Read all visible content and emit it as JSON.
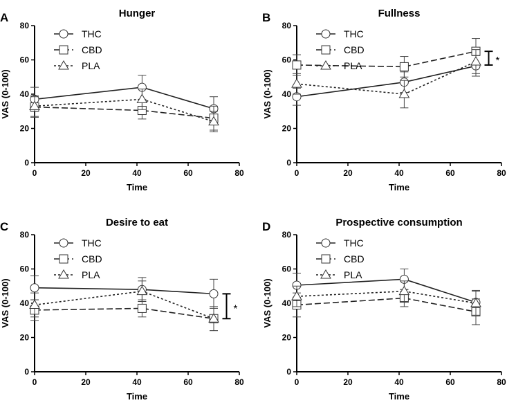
{
  "chart_data": [
    {
      "type": "line",
      "panel_label": "A",
      "title": "Hunger",
      "xlabel": "Time",
      "ylabel": "VAS (0-100)",
      "xlim": [
        0,
        80
      ],
      "ylim": [
        0,
        80
      ],
      "xticks": [
        0,
        20,
        40,
        60,
        80
      ],
      "yticks": [
        0,
        20,
        40,
        60,
        80
      ],
      "x": [
        0,
        42,
        70
      ],
      "legend": "top-left",
      "series": [
        {
          "name": "THC",
          "marker": "circle",
          "dash": "solid",
          "values": [
            37,
            44,
            31.5
          ],
          "error": [
            7,
            7,
            7
          ]
        },
        {
          "name": "CBD",
          "marker": "square",
          "dash": "dashed",
          "values": [
            32.5,
            30.5,
            26
          ],
          "error": [
            6,
            5,
            7
          ]
        },
        {
          "name": "PLA",
          "marker": "triangle",
          "dash": "dotted",
          "values": [
            33,
            37,
            24
          ],
          "error": [
            6,
            6,
            6
          ]
        }
      ],
      "annotations": []
    },
    {
      "type": "line",
      "panel_label": "B",
      "title": "Fullness",
      "xlabel": "Time",
      "ylabel": "VAS (0-100)",
      "xlim": [
        0,
        80
      ],
      "ylim": [
        0,
        80
      ],
      "xticks": [
        0,
        20,
        40,
        60,
        80
      ],
      "yticks": [
        0,
        20,
        40,
        60,
        80
      ],
      "x": [
        0,
        42,
        70
      ],
      "legend": "top-left",
      "series": [
        {
          "name": "THC",
          "marker": "circle",
          "dash": "solid",
          "values": [
            38.5,
            47,
            56.5
          ],
          "error": [
            5,
            6,
            6
          ]
        },
        {
          "name": "CBD",
          "marker": "square",
          "dash": "dashed",
          "values": [
            57,
            56,
            65
          ],
          "error": [
            6,
            6,
            7.5
          ]
        },
        {
          "name": "PLA",
          "marker": "triangle",
          "dash": "dotted",
          "values": [
            46,
            40,
            59
          ],
          "error": [
            6,
            8,
            7
          ]
        }
      ],
      "annotations": [
        {
          "text": "*",
          "x": 75,
          "y_from": 57,
          "y_to": 65
        }
      ]
    },
    {
      "type": "line",
      "panel_label": "C",
      "title": "Desire to eat",
      "xlabel": "Time",
      "ylabel": "VAS (0-100)",
      "xlim": [
        0,
        80
      ],
      "ylim": [
        0,
        80
      ],
      "xticks": [
        0,
        20,
        40,
        60,
        80
      ],
      "yticks": [
        0,
        20,
        40,
        60,
        80
      ],
      "x": [
        0,
        42,
        70
      ],
      "legend": "top-left",
      "series": [
        {
          "name": "THC",
          "marker": "circle",
          "dash": "solid",
          "values": [
            49,
            48,
            45.5
          ],
          "error": [
            7,
            7,
            8.5
          ]
        },
        {
          "name": "CBD",
          "marker": "square",
          "dash": "dashed",
          "values": [
            36,
            37,
            31
          ],
          "error": [
            6,
            5,
            7
          ]
        },
        {
          "name": "PLA",
          "marker": "triangle",
          "dash": "dotted",
          "values": [
            39,
            47,
            31
          ],
          "error": [
            7,
            6,
            7
          ]
        }
      ],
      "annotations": [
        {
          "text": "*",
          "x": 75,
          "y_from": 31,
          "y_to": 45.5
        }
      ]
    },
    {
      "type": "line",
      "panel_label": "D",
      "title": "Prospective consumption",
      "xlabel": "Time",
      "ylabel": "VAS (0-100)",
      "xlim": [
        0,
        80
      ],
      "ylim": [
        0,
        80
      ],
      "xticks": [
        0,
        20,
        40,
        60,
        80
      ],
      "yticks": [
        0,
        20,
        40,
        60,
        80
      ],
      "x": [
        0,
        42,
        70
      ],
      "legend": "top-left",
      "series": [
        {
          "name": "THC",
          "marker": "circle",
          "dash": "solid",
          "values": [
            50.5,
            54,
            40.5
          ],
          "error": [
            7,
            6,
            7
          ]
        },
        {
          "name": "CBD",
          "marker": "square",
          "dash": "dashed",
          "values": [
            39,
            43,
            35
          ],
          "error": [
            7,
            5,
            7.5
          ]
        },
        {
          "name": "PLA",
          "marker": "triangle",
          "dash": "dotted",
          "values": [
            44,
            47,
            40
          ],
          "error": [
            6,
            6,
            7
          ]
        }
      ],
      "annotations": []
    }
  ]
}
